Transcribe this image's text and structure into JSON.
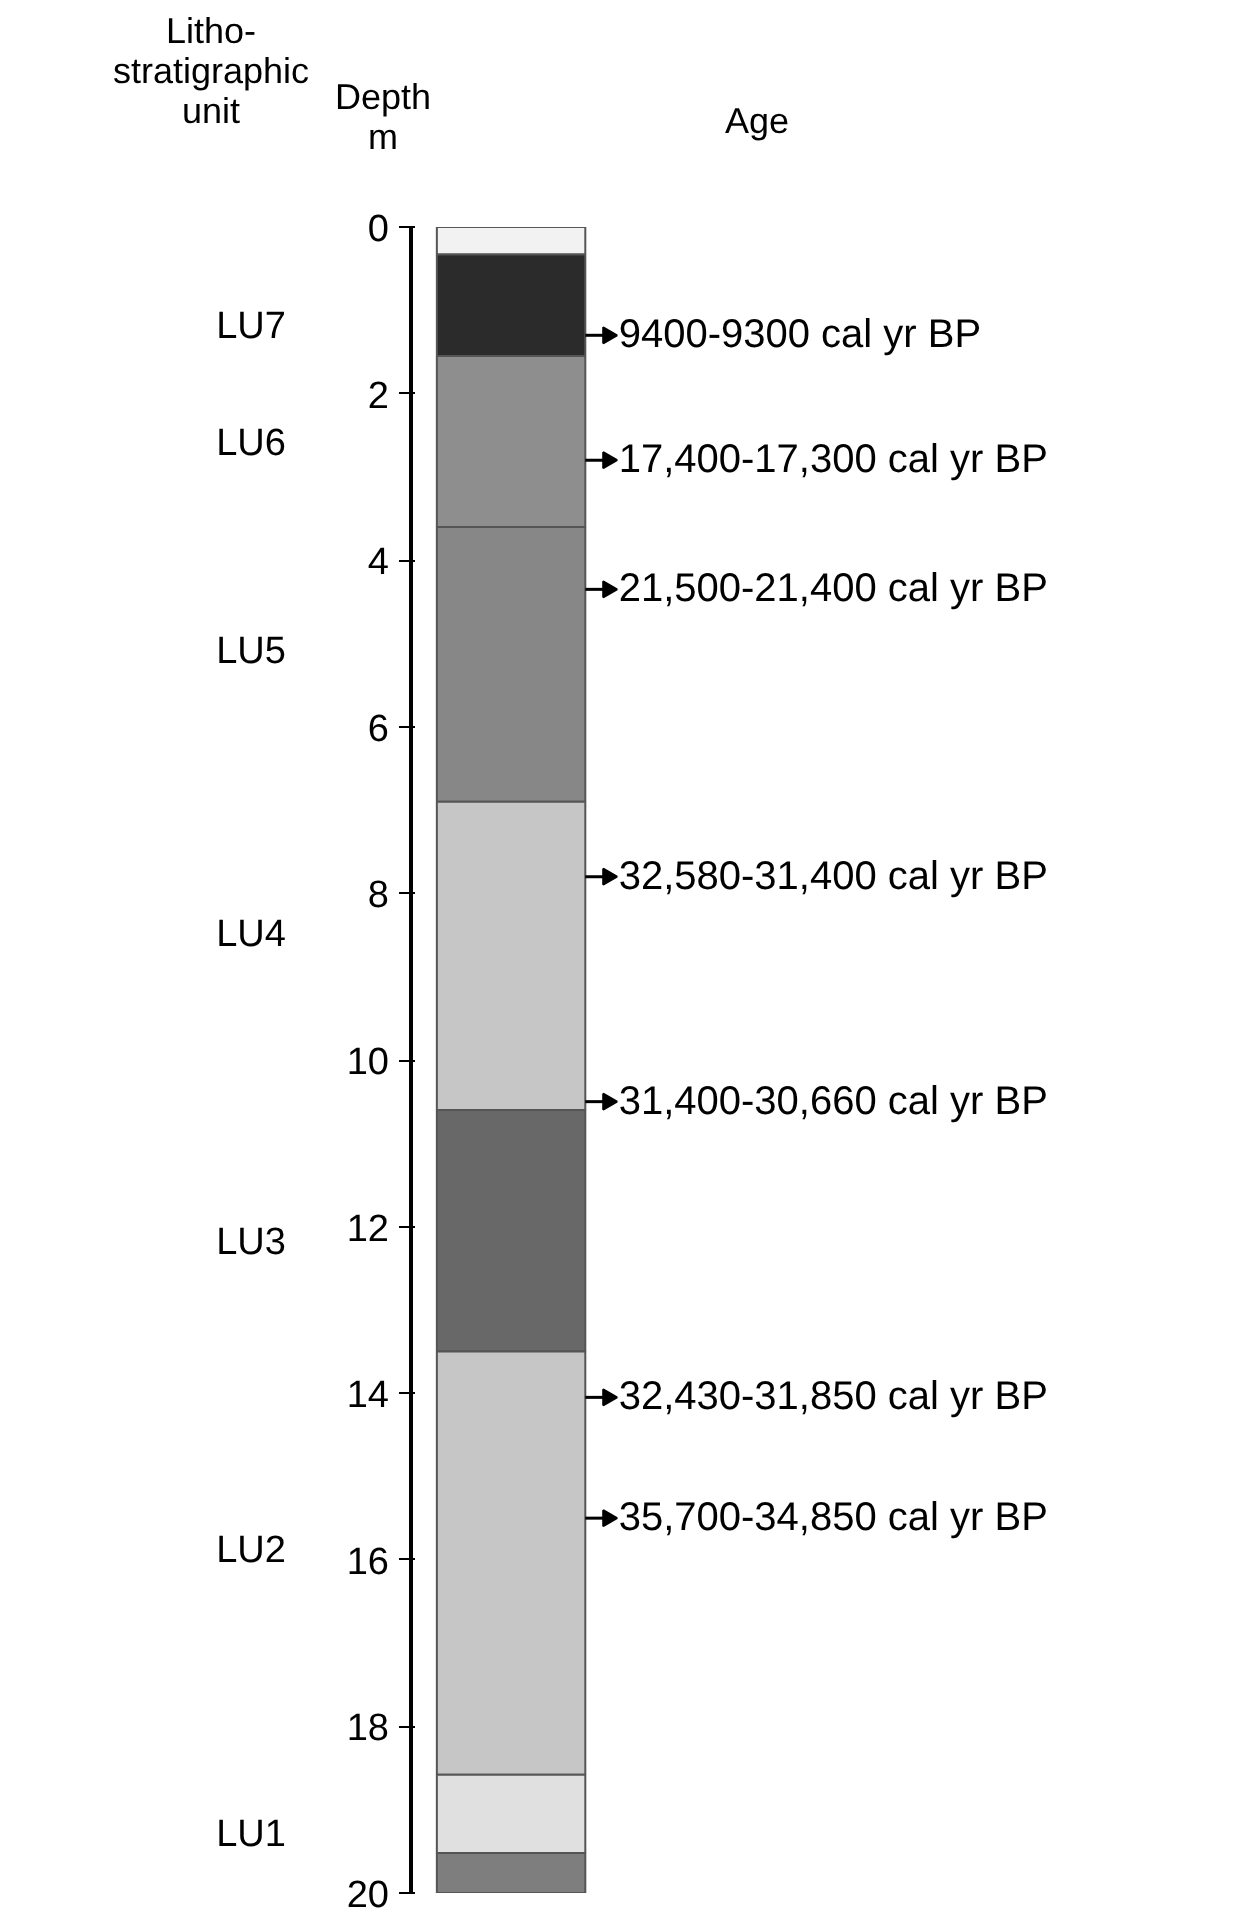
{
  "chart_data": {
    "type": "bar",
    "stacked": true,
    "categories": [
      null
    ],
    "series": [
      {
        "color": "#f2f2f2",
        "values": [
          0.33
        ]
      },
      {
        "color": "#2b2b2b",
        "values": [
          1.22
        ]
      },
      {
        "color": "#8e8e8e",
        "values": [
          2.05
        ]
      },
      {
        "color": "#878787",
        "values": [
          3.3
        ]
      },
      {
        "color": "#c6c6c6",
        "values": [
          3.7
        ]
      },
      {
        "color": "#686868",
        "values": [
          2.9
        ]
      },
      {
        "color": "#c6c6c6",
        "values": [
          5.08
        ]
      },
      {
        "color": "#e0e0e0",
        "values": [
          0.94
        ]
      },
      {
        "color": "#7e7e7e",
        "values": [
          0.48
        ]
      }
    ],
    "ylabel": "Depth\nm",
    "ylim": [
      20,
      0
    ],
    "yticks": [
      0,
      2,
      4,
      6,
      8,
      10,
      12,
      14,
      16,
      18,
      20
    ],
    "grid": false,
    "annotations": [
      "Litho-\nstratigraphic\nunit",
      "Age",
      "9400-9300 cal yr BP",
      "17,400-17,300 cal yr BP",
      "21,500-21,400 cal yr BP",
      "32,580-31,400 cal yr BP",
      "31,400-30,660 cal yr BP",
      "32,430-31,850 cal yr BP",
      "35,700-34,850 cal yr BP",
      "LU7",
      "LU6",
      "LU5",
      "LU4",
      "LU3",
      "LU2",
      "LU1"
    ]
  }
}
